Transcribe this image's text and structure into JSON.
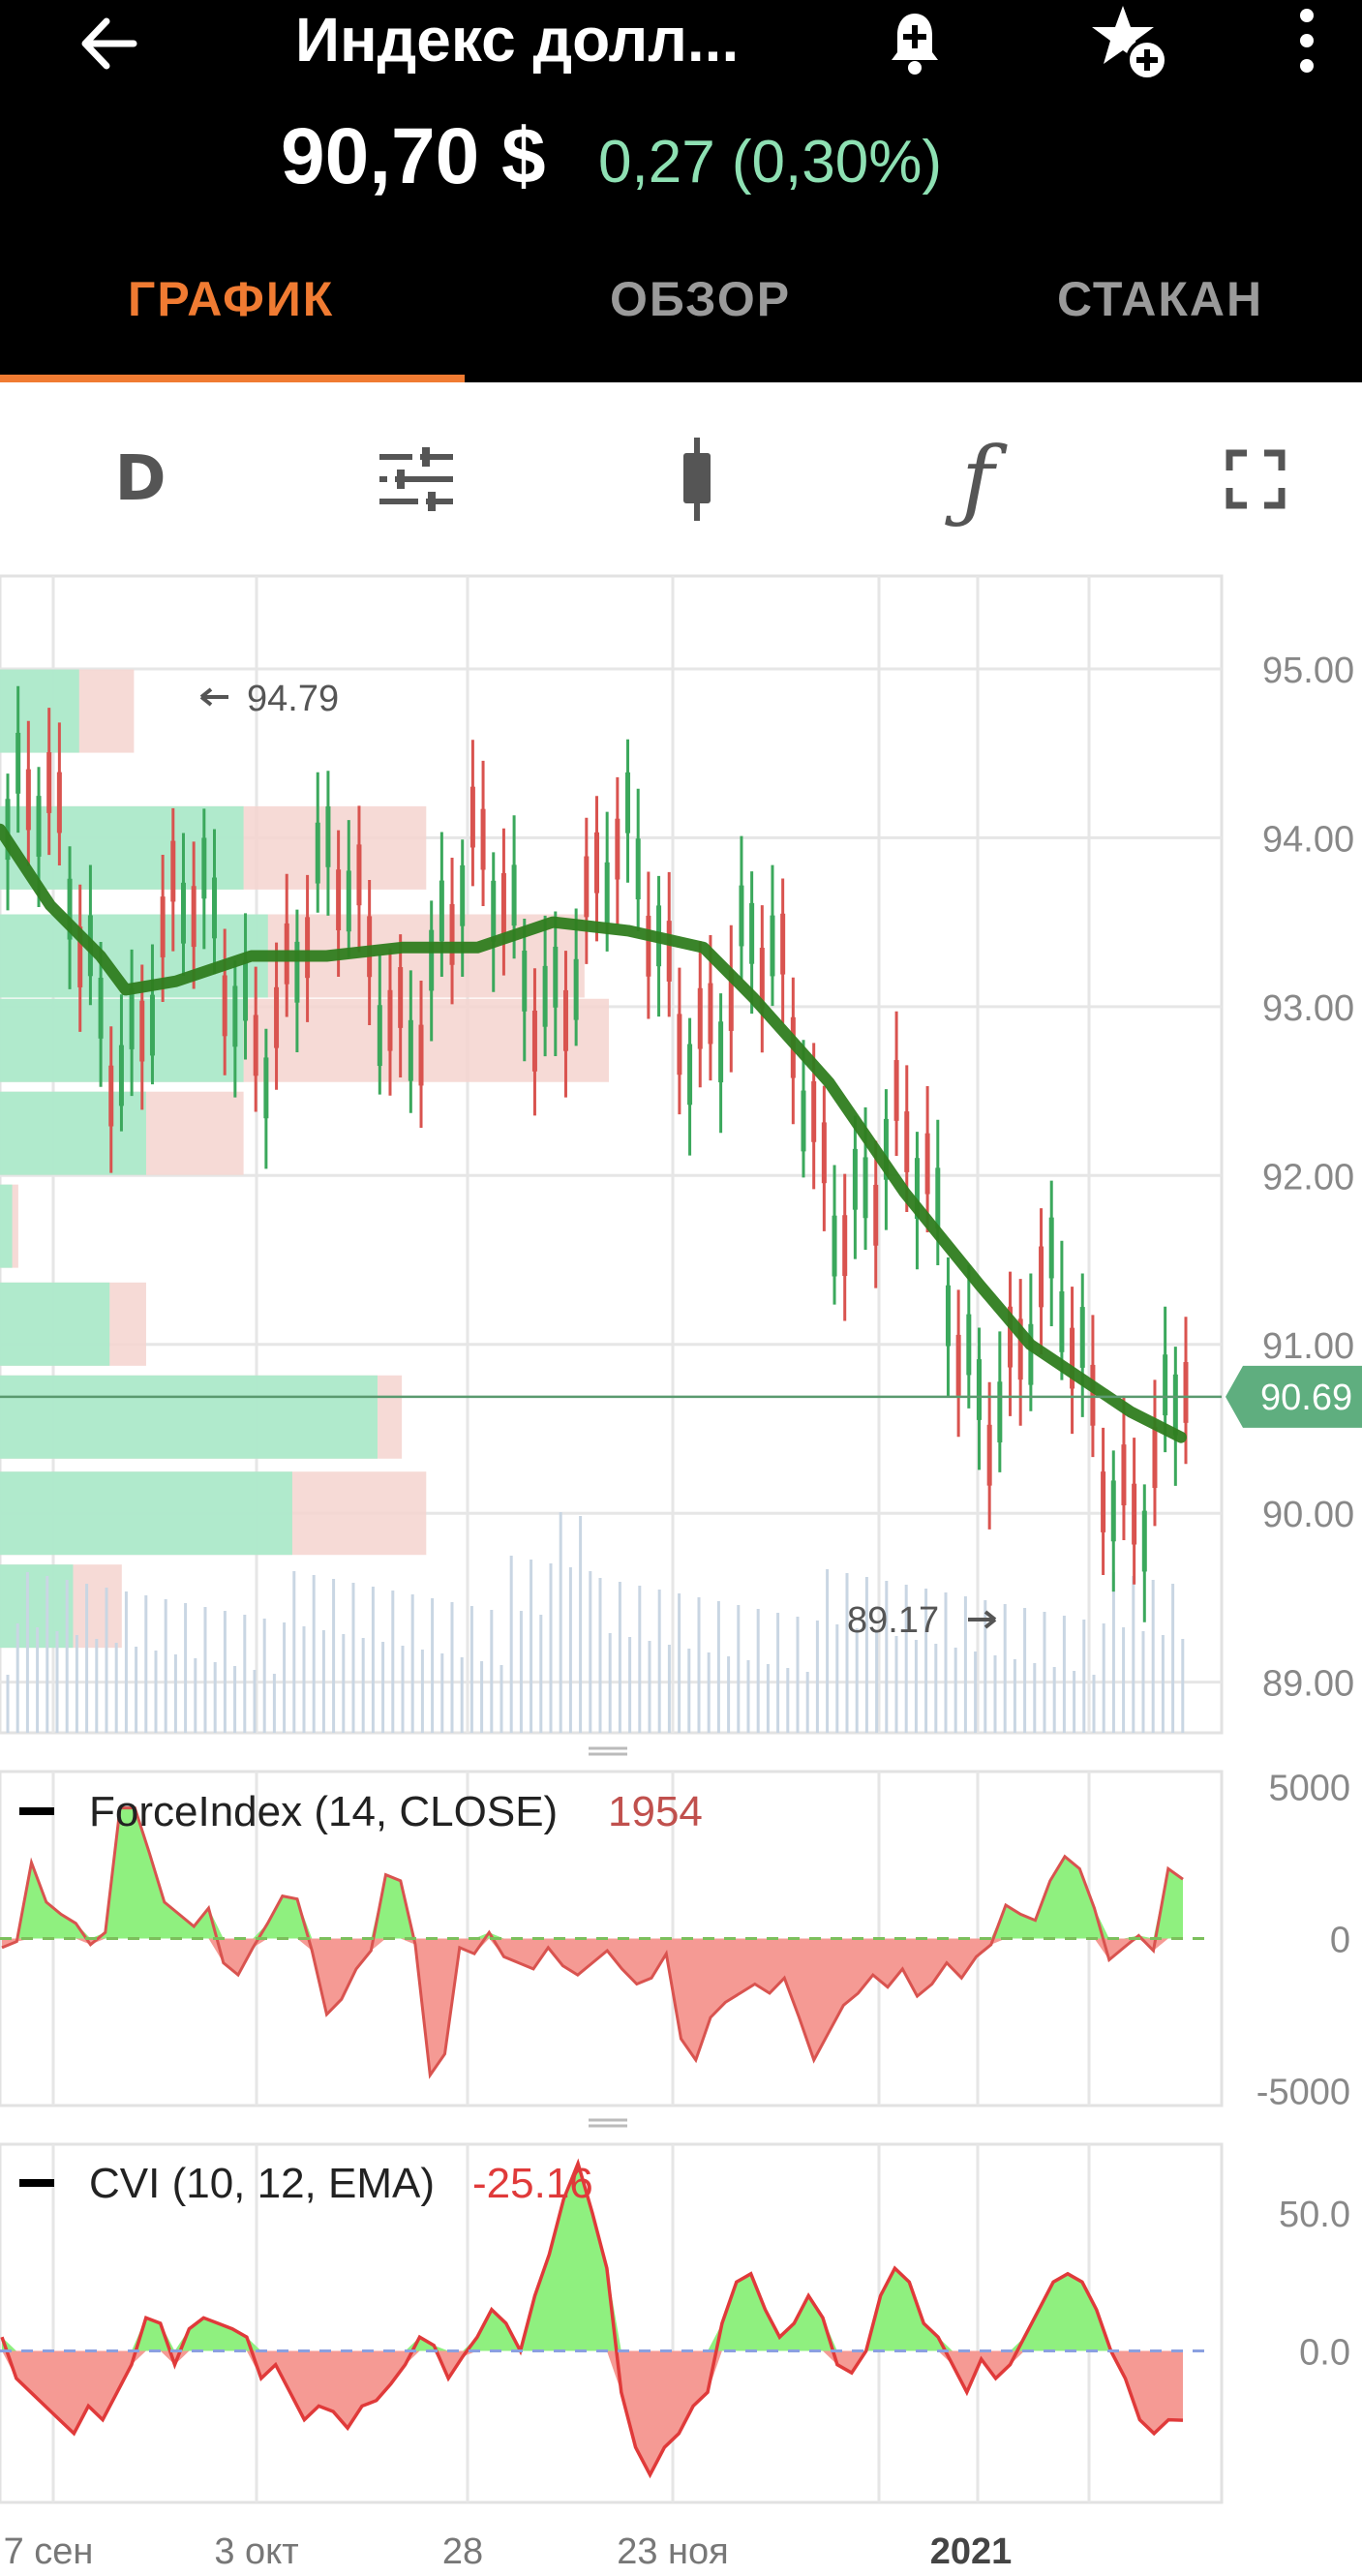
{
  "header": {
    "title": "Индекс долл...",
    "price": "90,70 $",
    "change": "0,27 (0,30%)",
    "icons": [
      "back-arrow-icon",
      "bell-plus-icon",
      "star-plus-icon",
      "more-vertical-icon"
    ]
  },
  "tabs": [
    {
      "label": "ГРАФИК",
      "active": true
    },
    {
      "label": "ОБЗОР",
      "active": false
    },
    {
      "label": "СТАКАН",
      "active": false
    }
  ],
  "toolbar": {
    "period_label": "D",
    "icons": [
      "sliders-icon",
      "candlestick-icon",
      "function-icon",
      "fullscreen-icon"
    ]
  },
  "colors": {
    "accent": "#f07b32",
    "up": "#3ba85c",
    "down": "#d9534f",
    "ma_line": "#2f7d1f",
    "current_price_label": "#5fae7f",
    "positive_change": "#8ee0b3"
  },
  "chart_data": [
    {
      "type": "candlestick",
      "y_ticks": [
        "95.00",
        "94.00",
        "93.00",
        "92.00",
        "91.00",
        "90.00",
        "89.00"
      ],
      "ylim": [
        88.7,
        95.55
      ],
      "x_labels": [
        "7 сен",
        "3 окт",
        "28",
        "23 ноя",
        "2021"
      ],
      "annotations": {
        "high": "94.79",
        "low": "89.17",
        "current_price": "90.69"
      },
      "moving_average": [
        [
          0,
          94.05
        ],
        [
          0.04,
          93.6
        ],
        [
          0.08,
          93.3
        ],
        [
          0.1,
          93.1
        ],
        [
          0.14,
          93.15
        ],
        [
          0.2,
          93.3
        ],
        [
          0.26,
          93.3
        ],
        [
          0.32,
          93.35
        ],
        [
          0.38,
          93.35
        ],
        [
          0.44,
          93.5
        ],
        [
          0.5,
          93.45
        ],
        [
          0.56,
          93.35
        ],
        [
          0.6,
          93.05
        ],
        [
          0.66,
          92.55
        ],
        [
          0.72,
          91.9
        ],
        [
          0.78,
          91.35
        ],
        [
          0.82,
          91.0
        ],
        [
          0.86,
          90.8
        ],
        [
          0.9,
          90.6
        ],
        [
          0.94,
          90.45
        ]
      ],
      "volume_profile": [
        {
          "price": 94.75,
          "buy": 0.065,
          "sell": 0.11
        },
        {
          "price": 93.94,
          "buy": 0.2,
          "sell": 0.35
        },
        {
          "price": 93.3,
          "buy": 0.22,
          "sell": 0.48
        },
        {
          "price": 92.8,
          "buy": 0.2,
          "sell": 0.5
        },
        {
          "price": 92.25,
          "buy": 0.12,
          "sell": 0.2
        },
        {
          "price": 91.7,
          "buy": 0.01,
          "sell": 0.015
        },
        {
          "price": 91.12,
          "buy": 0.09,
          "sell": 0.12
        },
        {
          "price": 90.57,
          "buy": 0.31,
          "sell": 0.33
        },
        {
          "price": 90.0,
          "buy": 0.24,
          "sell": 0.35
        },
        {
          "price": 89.45,
          "buy": 0.06,
          "sell": 0.1
        }
      ]
    },
    {
      "type": "area",
      "name": "ForceIndex (14, CLOSE)",
      "value_label": "1954",
      "y_ticks": [
        "5000",
        "0",
        "-5000"
      ],
      "ylim": [
        -5500,
        5500
      ],
      "values": [
        -300,
        -100,
        2500,
        1200,
        800,
        500,
        -200,
        200,
        4300,
        4300,
        2800,
        1200,
        800,
        400,
        1000,
        -800,
        -1200,
        -300,
        500,
        1400,
        1300,
        -400,
        -2500,
        -2000,
        -1000,
        -400,
        2100,
        1900,
        -200,
        -4500,
        -3800,
        -300,
        -500,
        200,
        -600,
        -800,
        -1000,
        -300,
        -900,
        -1200,
        -800,
        -400,
        -1000,
        -1500,
        -1300,
        -500,
        -3300,
        -4000,
        -2600,
        -2100,
        -1800,
        -1500,
        -1800,
        -1300,
        -2600,
        -4000,
        -3100,
        -2200,
        -1800,
        -1200,
        -1600,
        -1000,
        -1900,
        -1500,
        -800,
        -1300,
        -600,
        -200,
        1100,
        800,
        600,
        1900,
        2700,
        2300,
        1000,
        -700,
        -300,
        100,
        -400,
        2300,
        1954
      ]
    },
    {
      "type": "area",
      "name": "CVI (10, 12, EMA)",
      "value_label": "-25.16",
      "y_ticks": [
        "50.0",
        "0.0"
      ],
      "ylim": [
        -55,
        75
      ],
      "values": [
        5,
        -10,
        -15,
        -20,
        -25,
        -30,
        -20,
        -25,
        -15,
        -5,
        12,
        10,
        -5,
        8,
        12,
        10,
        8,
        5,
        -10,
        -5,
        -15,
        -25,
        -20,
        -22,
        -28,
        -20,
        -18,
        -12,
        -5,
        5,
        2,
        -10,
        -2,
        5,
        15,
        10,
        0,
        20,
        35,
        55,
        68,
        50,
        30,
        -15,
        -35,
        -45,
        -35,
        -30,
        -20,
        -15,
        10,
        25,
        28,
        15,
        5,
        10,
        20,
        12,
        -5,
        -8,
        0,
        20,
        30,
        25,
        10,
        5,
        -5,
        -15,
        -3,
        -10,
        -5,
        5,
        15,
        25,
        28,
        25,
        15,
        0,
        -10,
        -25,
        -30,
        -25,
        -25.16
      ]
    }
  ]
}
